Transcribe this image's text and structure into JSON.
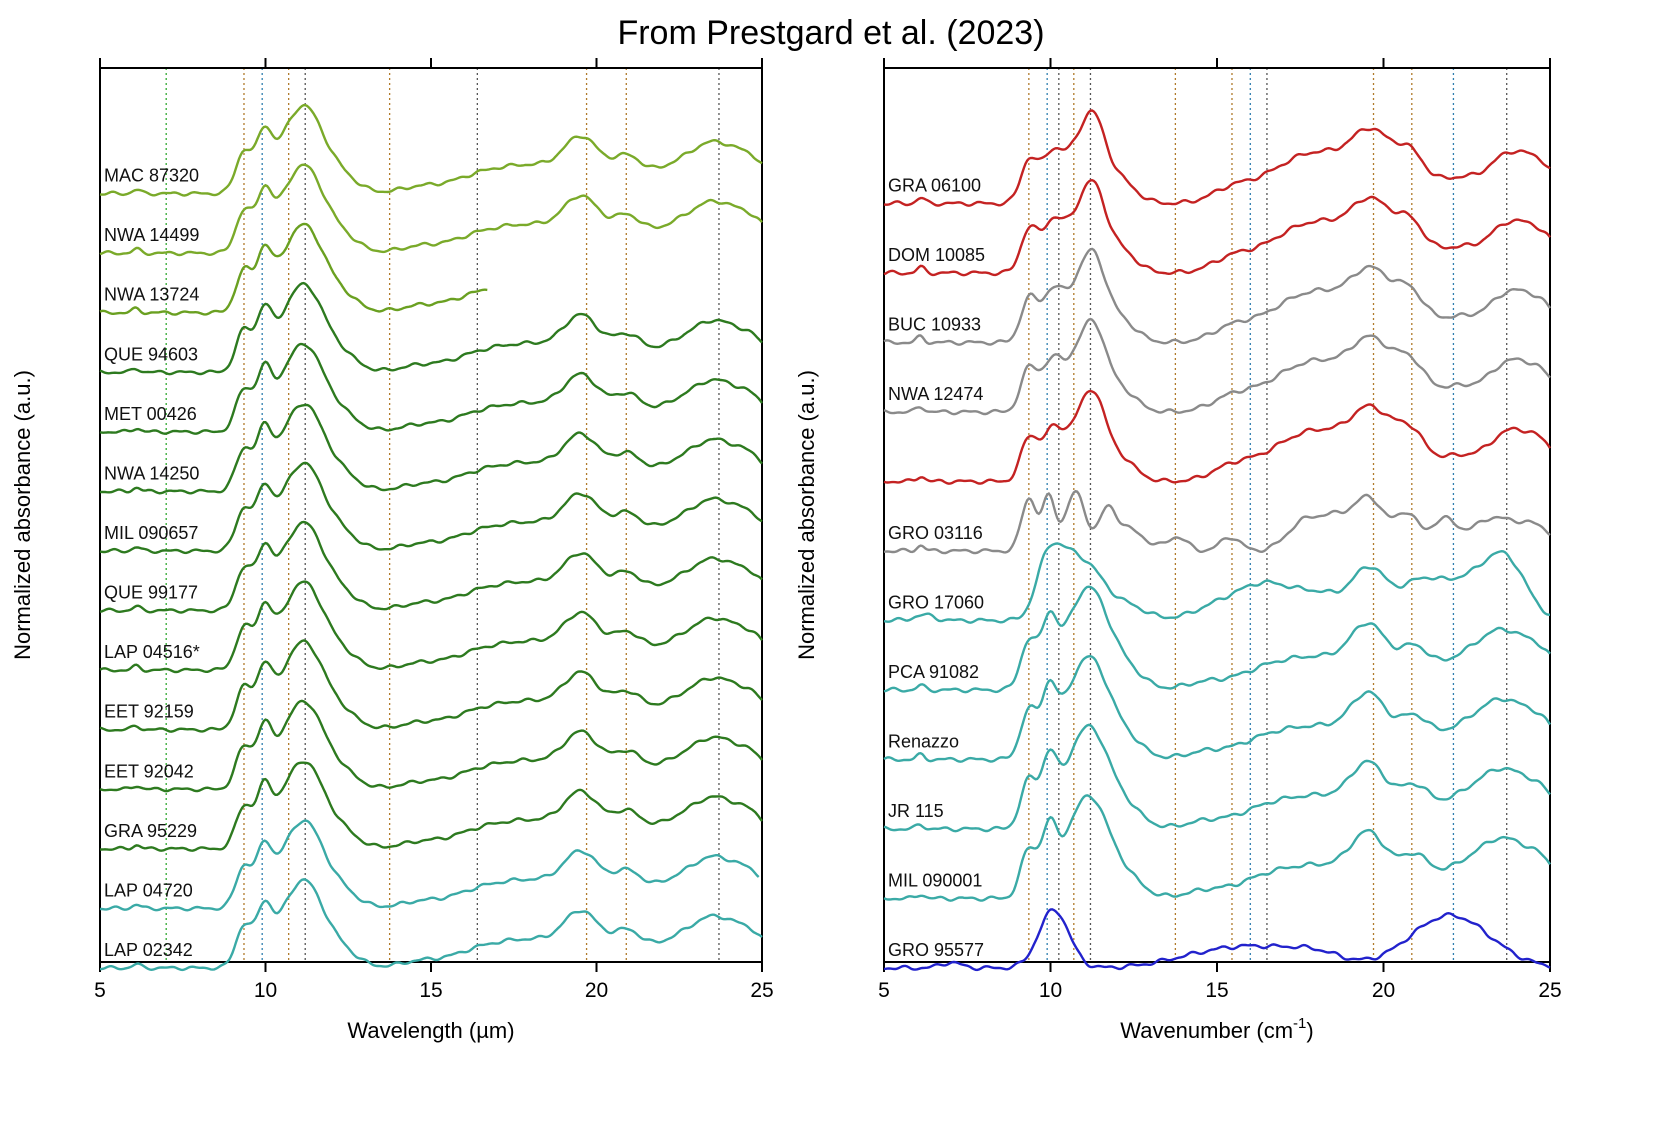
{
  "title": "From Prestgard et al. (2023)",
  "chart_data": [
    {
      "type": "line",
      "title": "",
      "xlabel": "Wavelength (µm)",
      "ylabel": "Normalized absorbance (a.u.)",
      "xlim": [
        5,
        25
      ],
      "xticks": [
        "5",
        "10",
        "15",
        "20",
        "25"
      ],
      "grid": false,
      "reference_lines": [
        {
          "x": 7.0,
          "color": "#33aa33"
        },
        {
          "x": 9.35,
          "color": "#b07a2a"
        },
        {
          "x": 9.9,
          "color": "#2f7fb0"
        },
        {
          "x": 10.7,
          "color": "#b07a2a"
        },
        {
          "x": 11.2,
          "color": "#555555"
        },
        {
          "x": 13.75,
          "color": "#b07a2a"
        },
        {
          "x": 16.4,
          "color": "#555555"
        },
        {
          "x": 19.7,
          "color": "#b07a2a"
        },
        {
          "x": 20.9,
          "color": "#b07a2a"
        },
        {
          "x": 23.7,
          "color": "#555555"
        }
      ],
      "series": [
        {
          "name": "MAC 87320",
          "color": "#7aaa2a",
          "style": "typeA",
          "xmin": 5,
          "xmax": 25
        },
        {
          "name": "NWA 14499",
          "color": "#7aaa2a",
          "style": "typeA",
          "xmin": 5,
          "xmax": 25
        },
        {
          "name": "NWA 13724",
          "color": "#6aa021",
          "style": "typeA",
          "xmin": 5,
          "xmax": 16.7
        },
        {
          "name": "QUE 94603",
          "color": "#2d7a1f",
          "style": "typeA",
          "xmin": 5,
          "xmax": 25
        },
        {
          "name": "MET 00426",
          "color": "#2d7a1f",
          "style": "typeA",
          "xmin": 5,
          "xmax": 25
        },
        {
          "name": "NWA 14250",
          "color": "#2d7a1f",
          "style": "typeA",
          "xmin": 5,
          "xmax": 25
        },
        {
          "name": "MIL 090657",
          "color": "#2d7a1f",
          "style": "typeA",
          "xmin": 5,
          "xmax": 25
        },
        {
          "name": "QUE 99177",
          "color": "#2d7a1f",
          "style": "typeA",
          "xmin": 5,
          "xmax": 25
        },
        {
          "name": "LAP 04516*",
          "color": "#2d7a1f",
          "style": "typeA",
          "xmin": 5,
          "xmax": 25
        },
        {
          "name": "EET 92159",
          "color": "#2d7a1f",
          "style": "typeA",
          "xmin": 5,
          "xmax": 25
        },
        {
          "name": "EET 92042",
          "color": "#2d7a1f",
          "style": "typeA",
          "xmin": 5,
          "xmax": 25
        },
        {
          "name": "GRA 95229",
          "color": "#2d7a1f",
          "style": "typeA",
          "xmin": 5,
          "xmax": 25
        },
        {
          "name": "LAP 04720",
          "color": "#3aaaa6",
          "style": "typeA",
          "xmin": 5,
          "xmax": 24.9
        },
        {
          "name": "LAP 02342",
          "color": "#3aaaa6",
          "style": "typeA",
          "xmin": 5,
          "xmax": 25
        }
      ]
    },
    {
      "type": "line",
      "title": "",
      "xlabel": "Wavenumber (cm-1)",
      "ylabel": "Normalized absorbance (a.u.)",
      "xlim": [
        5,
        25
      ],
      "xticks": [
        "5",
        "10",
        "15",
        "20",
        "25"
      ],
      "grid": false,
      "reference_lines": [
        {
          "x": 9.35,
          "color": "#b07a2a"
        },
        {
          "x": 9.9,
          "color": "#2f7fb0"
        },
        {
          "x": 10.25,
          "color": "#555555"
        },
        {
          "x": 10.7,
          "color": "#b07a2a"
        },
        {
          "x": 11.2,
          "color": "#555555"
        },
        {
          "x": 13.75,
          "color": "#b07a2a"
        },
        {
          "x": 15.45,
          "color": "#b07a2a"
        },
        {
          "x": 16.0,
          "color": "#2f7fb0"
        },
        {
          "x": 16.5,
          "color": "#555555"
        },
        {
          "x": 19.7,
          "color": "#b07a2a"
        },
        {
          "x": 20.85,
          "color": "#b07a2a"
        },
        {
          "x": 22.1,
          "color": "#2f7fb0"
        },
        {
          "x": 23.7,
          "color": "#555555"
        }
      ],
      "series": [
        {
          "name": "GRA 06100",
          "color": "#c42222",
          "style": "typeB",
          "xmin": 5,
          "xmax": 25
        },
        {
          "name": "DOM 10085",
          "color": "#c42222",
          "style": "typeB",
          "xmin": 5,
          "xmax": 25
        },
        {
          "name": "BUC 10933",
          "color": "#8a8a8a",
          "style": "typeB",
          "xmin": 5,
          "xmax": 25
        },
        {
          "name": "NWA 12474",
          "color": "#8a8a8a",
          "style": "typeB",
          "xmin": 5,
          "xmax": 25
        },
        {
          "name": "",
          "color": "#c42222",
          "style": "typeB",
          "xmin": 5,
          "xmax": 25
        },
        {
          "name": "GRO 03116",
          "color": "#8a8a8a",
          "style": "typeC",
          "xmin": 5,
          "xmax": 25
        },
        {
          "name": "GRO 17060",
          "color": "#3aaaa6",
          "style": "typeD",
          "xmin": 5,
          "xmax": 25
        },
        {
          "name": "PCA 91082",
          "color": "#3aaaa6",
          "style": "typeA",
          "xmin": 5,
          "xmax": 25
        },
        {
          "name": "Renazzo",
          "color": "#3aaaa6",
          "style": "typeA",
          "xmin": 5,
          "xmax": 25
        },
        {
          "name": "JR 115",
          "color": "#3aaaa6",
          "style": "typeA",
          "xmin": 5,
          "xmax": 25
        },
        {
          "name": "MIL 090001",
          "color": "#3aaaa6",
          "style": "typeA",
          "xmin": 5,
          "xmax": 25
        },
        {
          "name": "GRO 95577",
          "color": "#2222cc",
          "style": "typeE",
          "xmin": 5,
          "xmax": 25
        }
      ]
    }
  ]
}
